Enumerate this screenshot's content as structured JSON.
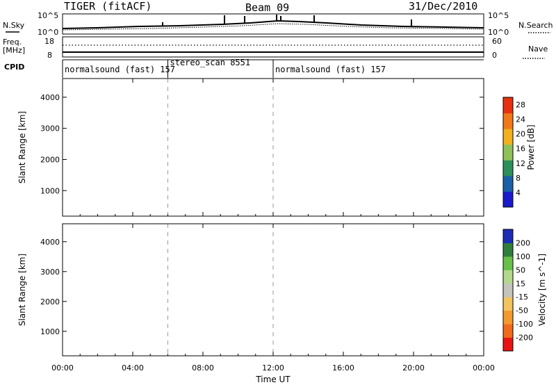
{
  "header": {
    "radar": "TIGER (fitACF)",
    "beam": "Beam 09",
    "date": "31/Dec/2010"
  },
  "summary_panels": {
    "nsky_label": "N.Sky",
    "nsearch_label": "N.Search",
    "nsky_ticks": [
      "10^5",
      "10^0"
    ],
    "nsearch_ticks": [
      "10^5",
      "10^0"
    ],
    "freq_label": [
      "Freq.",
      "[MHz]"
    ],
    "freq_ticks": [
      18,
      8
    ],
    "nave_label": "Nave",
    "nave_ticks": [
      60,
      0
    ],
    "cpid_label": "CPID",
    "cpid_segments": [
      {
        "label": "normalsound (fast) 157",
        "start_hr": 0,
        "end_hr": 6
      },
      {
        "label": "stereo_scan 8551",
        "start_hr": 6,
        "end_hr": 12
      },
      {
        "label": "normalsound (fast) 157",
        "start_hr": 12,
        "end_hr": 24
      }
    ]
  },
  "chart_data": [
    {
      "type": "heatmap",
      "title": "",
      "xlabel": "",
      "ylabel": "Slant Range [km]",
      "xlim": [
        0,
        24
      ],
      "ylim": [
        180,
        4600
      ],
      "yticks": [
        1000,
        2000,
        3000,
        4000
      ],
      "colorbar_label": "Power [dB]",
      "colorbar_ticks": [
        4,
        8,
        12,
        16,
        20,
        24,
        28
      ],
      "colorbar_range": [
        0,
        30
      ],
      "colorscale": [
        "#1a1acc",
        "#1a5fa8",
        "#2d8f5a",
        "#8fc05a",
        "#f2b01e",
        "#f07818",
        "#e63010"
      ]
    },
    {
      "type": "heatmap",
      "title": "",
      "xlabel": "Time UT",
      "ylabel": "Slant Range [km]",
      "xlim": [
        0,
        24
      ],
      "ylim": [
        180,
        4600
      ],
      "yticks": [
        1000,
        2000,
        3000,
        4000
      ],
      "xticks": [
        "00:00",
        "04:00",
        "08:00",
        "12:00",
        "16:00",
        "20:00",
        "00:00"
      ],
      "colorbar_label": "Velocity [m s^-1]",
      "colorbar_ticks": [
        200,
        100,
        50,
        15,
        -15,
        -50,
        -100,
        -200
      ],
      "colorscale": [
        "#1c2cb4",
        "#2f7f3a",
        "#66c04a",
        "#b4d88c",
        "#c4c4bc",
        "#f2c35e",
        "#f29a2e",
        "#f06a1e",
        "#e81414"
      ]
    }
  ]
}
